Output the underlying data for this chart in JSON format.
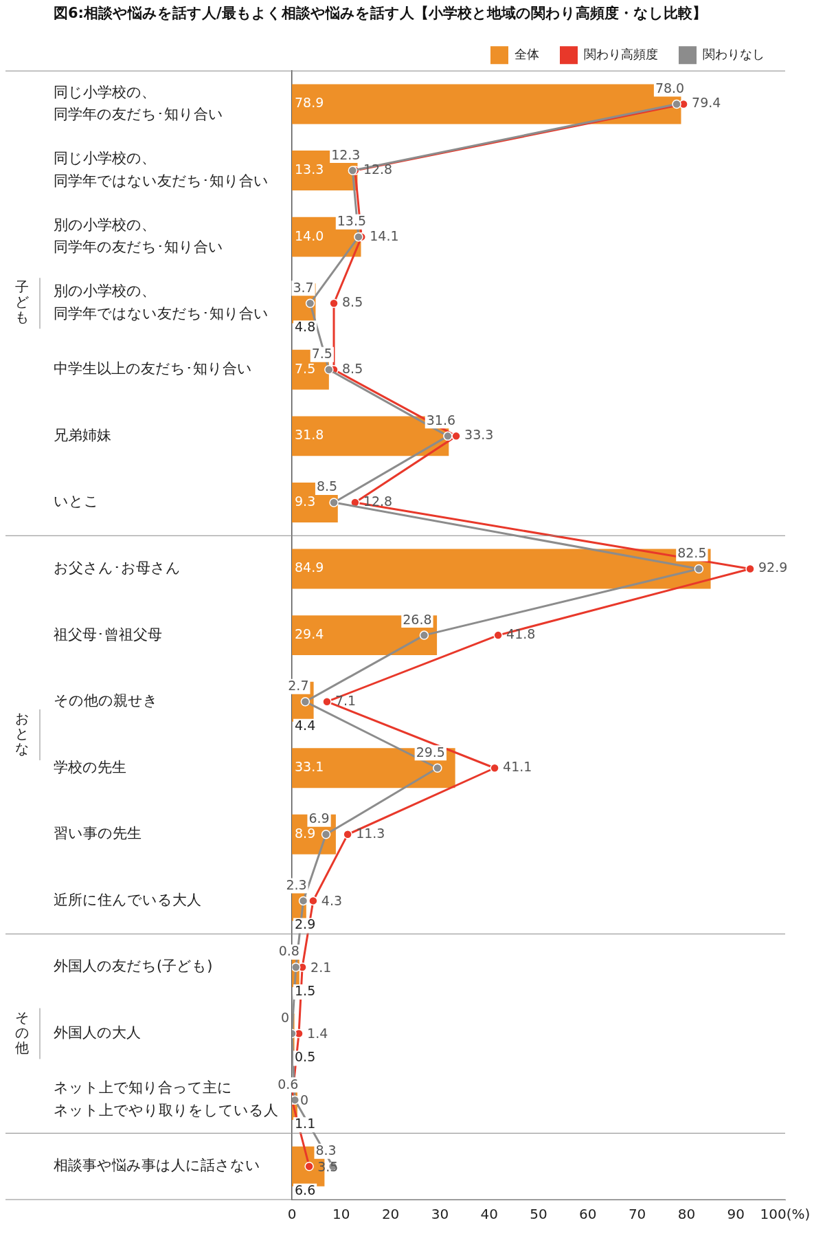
{
  "chart_data": {
    "type": "bar",
    "orientation": "horizontal",
    "title": "図6:相談や悩みを話す人/最もよく相談や悩みを話す人【小学校と地域の関わり高頻度・なし比較】",
    "categories": [
      "同じ小学校の、同学年の友だち･知り合い",
      "同じ小学校の、同学年ではない友だち･知り合い",
      "別の小学校の、同学年の友だち･知り合い",
      "別の小学校の、同学年ではない友だち･知り合い",
      "中学生以上の友だち･知り合い",
      "兄弟姉妹",
      "いとこ",
      "お父さん･お母さん",
      "祖父母･曾祖父母",
      "その他の親せき",
      "学校の先生",
      "習い事の先生",
      "近所に住んでいる大人",
      "外国人の友だち(子ども)",
      "外国人の大人",
      "ネット上で知り合って主にネット上でやり取りをしている人",
      "相談事や悩み事は人に話さない"
    ],
    "series": [
      {
        "name": "全体",
        "color": "#ee9028",
        "values": [
          78.9,
          13.3,
          14.0,
          4.8,
          7.5,
          31.8,
          9.3,
          84.9,
          29.4,
          4.4,
          33.1,
          8.9,
          2.9,
          1.5,
          0.5,
          1.1,
          6.6
        ],
        "value_labels": [
          "78.9",
          "13.3",
          "14.0",
          "4.8",
          "7.5",
          "31.8",
          "9.3",
          "84.9",
          "29.4",
          "4.4",
          "33.1",
          "8.9",
          "2.9",
          "1.5",
          "0.5",
          "1.1",
          "6.6"
        ]
      },
      {
        "name": "関わり高頻度",
        "type": "line",
        "color": "#e8382a",
        "values": [
          79.4,
          12.8,
          14.1,
          8.5,
          8.5,
          33.3,
          12.8,
          92.9,
          41.8,
          7.1,
          41.1,
          11.3,
          4.3,
          2.1,
          1.4,
          0,
          3.5
        ],
        "value_labels": [
          "79.4",
          "12.8",
          "14.1",
          "8.5",
          "8.5",
          "33.3",
          "12.8",
          "92.9",
          "41.8",
          "7.1",
          "41.1",
          "11.3",
          "4.3",
          "2.1",
          "1.4",
          "0",
          "3.5"
        ]
      },
      {
        "name": "関わりなし",
        "type": "line",
        "color": "#8c8c8c",
        "values": [
          78.0,
          12.3,
          13.5,
          3.7,
          7.5,
          31.6,
          8.5,
          82.5,
          26.8,
          2.7,
          29.5,
          6.9,
          2.3,
          0.8,
          0,
          0.6,
          8.3
        ],
        "value_labels": [
          "78.0",
          "12.3",
          "13.5",
          "3.7",
          "7.5",
          "31.6",
          "8.5",
          "82.5",
          "26.8",
          "2.7",
          "29.5",
          "6.9",
          "2.3",
          "0.8",
          "0",
          "0.6",
          "8.3"
        ]
      }
    ],
    "xlim": [
      0,
      100
    ],
    "xticks": [
      0,
      10,
      20,
      30,
      40,
      50,
      60,
      70,
      80,
      90,
      {
        "value": 100,
        "label": "100(%)"
      }
    ],
    "legend": "top right",
    "marker": "circle",
    "grid": false,
    "annotations": [
      "子ども",
      "おとな",
      "その他"
    ]
  }
}
